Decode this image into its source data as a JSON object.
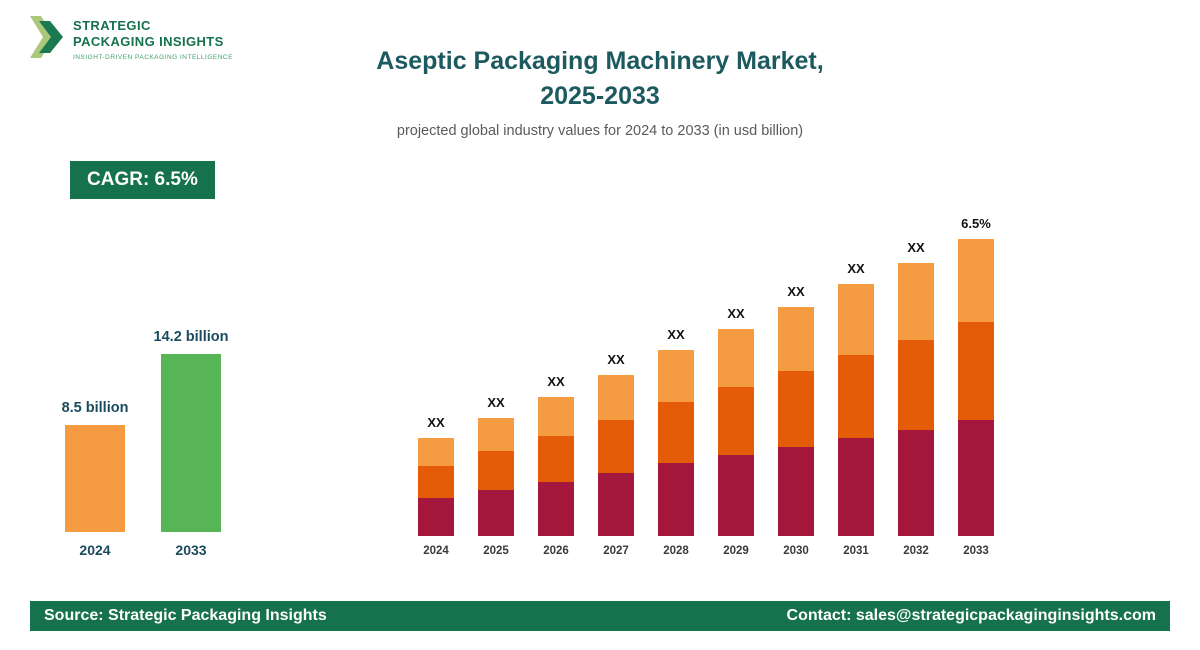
{
  "logo": {
    "line1": "STRATEGIC",
    "line2": "PACKAGING INSIGHTS",
    "tagline": "INSIGHT-DRIVEN PACKAGING INTELLIGENCE"
  },
  "header": {
    "title_line1": "Aseptic Packaging Machinery Market,",
    "title_line2": "2025-2033",
    "subtitle": "projected global industry values for 2024 to 2033 (in usd billion)"
  },
  "badge": {
    "label": "CAGR: 6.5%"
  },
  "palette": {
    "dark_green": "#16714d",
    "title_teal": "#1d5a60",
    "light_orange": "#f59b42",
    "dark_orange": "#e45c07",
    "maroon": "#a3173d",
    "green_bar": "#57b457"
  },
  "chart_data": [
    {
      "type": "bar",
      "name": "growth-summary",
      "categories": [
        "2024",
        "2033"
      ],
      "values": [
        8.5,
        14.2
      ],
      "value_labels": [
        "8.5 billion",
        "14.2 billion"
      ],
      "unit": "usd billion",
      "colors": [
        "#f59b42",
        "#57b457"
      ],
      "legend": "none",
      "grid": false
    },
    {
      "type": "bar",
      "subtype": "stacked",
      "name": "projection-by-year",
      "categories": [
        "2024",
        "2025",
        "2026",
        "2027",
        "2028",
        "2029",
        "2030",
        "2031",
        "2032",
        "2033"
      ],
      "series": [
        {
          "name": "segment-bottom",
          "color": "#a3173d",
          "values": [
            38,
            46,
            54,
            63,
            73,
            81,
            89,
            98,
            106,
            116
          ]
        },
        {
          "name": "segment-middle",
          "color": "#e45c07",
          "values": [
            32,
            39,
            46,
            53,
            61,
            68,
            76,
            83,
            90,
            98
          ]
        },
        {
          "name": "segment-top",
          "color": "#f59b42",
          "values": [
            28,
            33,
            39,
            45,
            52,
            58,
            64,
            71,
            77,
            83
          ]
        }
      ],
      "bar_labels": [
        "XX",
        "XX",
        "XX",
        "XX",
        "XX",
        "XX",
        "XX",
        "XX",
        "XX",
        "6.5%"
      ],
      "legend": "none",
      "grid": false
    }
  ],
  "footer": {
    "source": "Source: Strategic Packaging Insights",
    "contact": "Contact: sales@strategicpackaginginsights.com"
  }
}
